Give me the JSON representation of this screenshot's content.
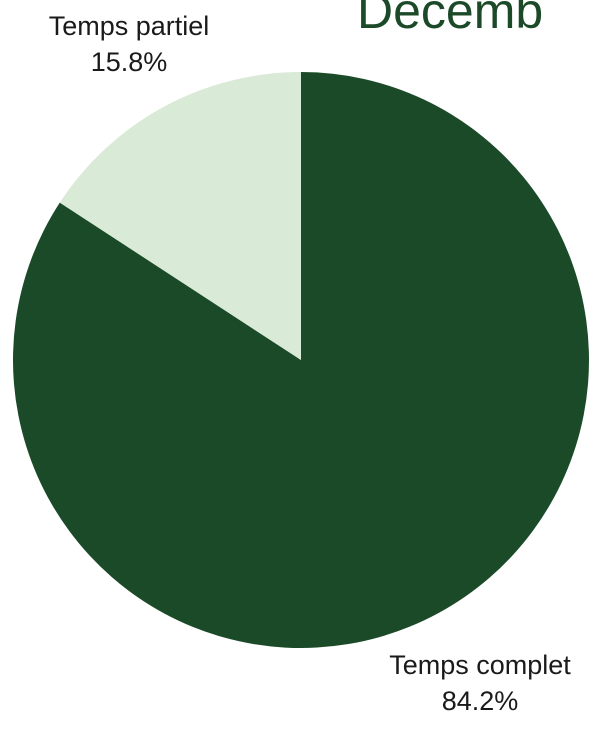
{
  "title": "Decemb",
  "chart_data": {
    "type": "pie",
    "title": "",
    "start_angle_deg": 0,
    "direction": "clockwise",
    "slices": [
      {
        "label": "Temps complet",
        "value": 84.2,
        "value_label": "84.2%",
        "color": "#1b4a28"
      },
      {
        "label": "Temps partiel",
        "value": 15.8,
        "value_label": "15.8%",
        "color": "#d9ead6"
      }
    ]
  }
}
